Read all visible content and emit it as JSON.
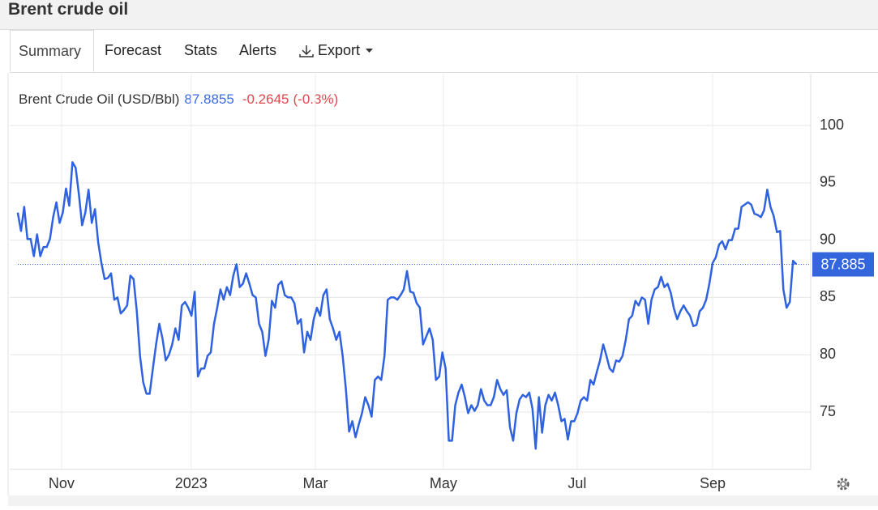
{
  "header": {
    "title": "Brent crude oil"
  },
  "tabs": [
    "Summary",
    "Forecast",
    "Stats",
    "Alerts",
    "Export"
  ],
  "legend": {
    "name": "Brent Crude Oil (USD/Bbl)",
    "last": "87.8855",
    "change": "-0.2645",
    "change_pct": "(-0.3%)"
  },
  "chart_data": {
    "type": "line",
    "series": [
      {
        "name": "Brent Crude Oil (USD/Bbl)",
        "color": "#2f62e0",
        "values": [
          92.4,
          90.8,
          92.9,
          90.1,
          90.1,
          88.6,
          90.5,
          88.6,
          89.4,
          89.4,
          90.1,
          92.0,
          93.3,
          91.5,
          92.4,
          94.5,
          93.0,
          96.8,
          96.3,
          94.0,
          91.3,
          92.4,
          94.4,
          91.5,
          92.7,
          89.8,
          88.0,
          86.6,
          86.7,
          87.1,
          84.8,
          85.0,
          83.6,
          83.9,
          84.3,
          86.9,
          86.6,
          83.8,
          79.9,
          77.6,
          76.6,
          76.6,
          78.8,
          80.9,
          82.7,
          81.4,
          79.5,
          80.0,
          80.9,
          82.3,
          81.3,
          84.3,
          84.6,
          84.1,
          83.4,
          85.5,
          78.1,
          78.8,
          78.8,
          79.9,
          80.2,
          82.7,
          84.1,
          85.7,
          84.8,
          85.9,
          85.2,
          86.9,
          87.9,
          85.9,
          86.2,
          87.1,
          86.2,
          85.2,
          85.0,
          82.7,
          82.0,
          79.9,
          81.3,
          84.7,
          84.1,
          86.1,
          86.4,
          85.2,
          85.0,
          85.0,
          84.5,
          82.7,
          83.1,
          80.2,
          82.0,
          81.3,
          83.1,
          84.1,
          83.4,
          85.2,
          85.7,
          83.1,
          82.3,
          81.3,
          82.0,
          79.9,
          77.0,
          73.3,
          74.2,
          72.8,
          73.9,
          74.9,
          76.3,
          75.6,
          74.6,
          77.8,
          78.1,
          77.8,
          79.9,
          84.8,
          85.0,
          85.0,
          84.8,
          85.2,
          85.7,
          87.3,
          85.5,
          85.4,
          84.5,
          84.1,
          80.9,
          81.6,
          82.3,
          81.3,
          77.8,
          78.1,
          80.2,
          78.8,
          72.5,
          72.5,
          75.6,
          76.7,
          77.4,
          76.3,
          74.9,
          75.6,
          75.1,
          75.6,
          77.0,
          76.0,
          75.6,
          75.6,
          76.3,
          77.8,
          77.0,
          76.5,
          76.9,
          73.7,
          72.5,
          74.9,
          76.1,
          76.5,
          76.3,
          76.7,
          75.3,
          71.8,
          76.3,
          73.2,
          75.6,
          76.5,
          76.0,
          76.7,
          75.6,
          74.2,
          74.4,
          72.6,
          74.2,
          74.2,
          74.9,
          76.0,
          76.3,
          76.0,
          77.8,
          77.4,
          78.5,
          79.5,
          80.9,
          79.9,
          78.8,
          78.5,
          79.5,
          79.4,
          79.9,
          81.3,
          83.1,
          83.4,
          84.7,
          84.3,
          85.0,
          84.8,
          82.7,
          84.8,
          85.7,
          85.9,
          86.8,
          85.9,
          86.2,
          85.4,
          84.0,
          83.1,
          83.8,
          84.3,
          83.8,
          83.4,
          82.5,
          82.6,
          83.8,
          84.1,
          84.8,
          86.2,
          88.0,
          88.5,
          89.6,
          89.9,
          89.2,
          90.0,
          90.0,
          91.0,
          91.0,
          92.9,
          93.1,
          93.3,
          93.1,
          92.3,
          92.2,
          92.0,
          92.6,
          94.4,
          92.9,
          92.1,
          90.7,
          90.8,
          85.7,
          84.1,
          84.6,
          88.2,
          87.9
        ]
      }
    ],
    "xlim": [
      -2.5,
      246.5
    ],
    "xticks": [
      {
        "value": 13.6,
        "label": "Nov"
      },
      {
        "value": 53.9,
        "label": "2023"
      },
      {
        "value": 92.5,
        "label": "Mar"
      },
      {
        "value": 132.3,
        "label": "May"
      },
      {
        "value": 173.9,
        "label": "Jul"
      },
      {
        "value": 216.0,
        "label": "Sep"
      }
    ],
    "ylim": [
      70,
      104.5
    ],
    "yticks": [
      75,
      80,
      85,
      90,
      95,
      100
    ],
    "last_marker": {
      "value": 87.885,
      "label": "87.885"
    },
    "grid": true
  }
}
